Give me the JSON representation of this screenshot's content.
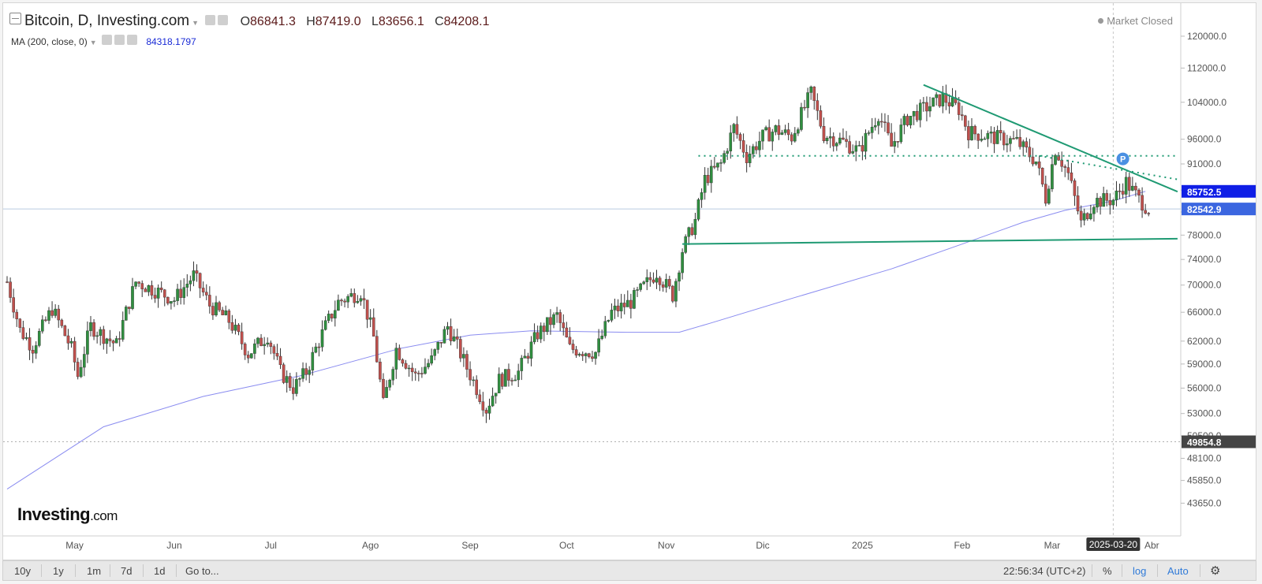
{
  "header": {
    "title": "Bitcoin, D, Investing.com",
    "open_label": "O",
    "open": "86841.3",
    "high_label": "H",
    "high": "87419.0",
    "low_label": "L",
    "low": "83656.1",
    "close_label": "C",
    "close": "84208.1",
    "ma_label": "MA (200, close, 0)",
    "ma_value": "84318.1797",
    "market_status": "Market Closed",
    "logo_main": "Investing",
    "logo_suffix": ".com"
  },
  "toolbar": {
    "ranges": [
      "10y",
      "1y",
      "1m",
      "7d",
      "1d"
    ],
    "goto": "Go to...",
    "clock": "22:56:34 (UTC+2)",
    "percent": "%",
    "log": "log",
    "auto": "Auto",
    "settings_icon": "gear-icon"
  },
  "colors": {
    "up": "#2f8f3f",
    "down": "#c0504d",
    "ma": "#8a8cf0",
    "trendline": "#1f9a73",
    "price_tag_blue": "#0f1ee6",
    "price_tag_last": "#3b66e0",
    "price_tag_gray": "#444444"
  },
  "chart_data": {
    "type": "candlestick",
    "scale": "log",
    "ylim": [
      42000,
      125000
    ],
    "y_ticks": [
      "120000.0",
      "112000.0",
      "104000.0",
      "96000.0",
      "91000.0",
      "86000.0",
      "82000.0",
      "78000.0",
      "74000.0",
      "70000.0",
      "66000.0",
      "62000.0",
      "59000.0",
      "56000.0",
      "53000.0",
      "50500.0",
      "48100.0",
      "45850.0",
      "43650.0"
    ],
    "x_range": [
      "2024-04-10",
      "2025-04-10"
    ],
    "x_labels": [
      {
        "text": "May",
        "date": "2024-05-01"
      },
      {
        "text": "Jun",
        "date": "2024-06-01"
      },
      {
        "text": "Jul",
        "date": "2024-07-01"
      },
      {
        "text": "Ago",
        "date": "2024-08-01"
      },
      {
        "text": "Sep",
        "date": "2024-09-01"
      },
      {
        "text": "Oct",
        "date": "2024-10-01"
      },
      {
        "text": "Nov",
        "date": "2024-11-01"
      },
      {
        "text": "Dic",
        "date": "2024-12-01"
      },
      {
        "text": "2025",
        "date": "2025-01-01"
      },
      {
        "text": "Feb",
        "date": "2025-02-01"
      },
      {
        "text": "Mar",
        "date": "2025-03-01"
      },
      {
        "text": "Abr",
        "date": "2025-04-01"
      }
    ],
    "crosshair_date": "2025-03-20",
    "price_tags": [
      {
        "text": "85752.5",
        "value": 85752.5,
        "style": "blue"
      },
      {
        "text": "82542.9",
        "value": 82542.9,
        "style": "last"
      },
      {
        "text": "49854.8",
        "value": 49854.8,
        "style": "gray"
      }
    ],
    "horizontal_lines": [
      {
        "value": 82542.9,
        "style": "solid-light"
      },
      {
        "value": 49854.8,
        "style": "dotted-gray"
      }
    ],
    "pattern_lines": [
      {
        "name": "descending resistance",
        "style": "solid",
        "from": {
          "date": "2025-01-20",
          "value": 108000
        },
        "to": {
          "date": "2025-04-09",
          "value": 85700
        }
      },
      {
        "name": "horizontal support",
        "style": "solid",
        "from": {
          "date": "2024-11-06",
          "value": 76500
        },
        "to": {
          "date": "2025-04-09",
          "value": 77400
        }
      },
      {
        "name": "neckline",
        "style": "dotted",
        "from": {
          "date": "2024-11-11",
          "value": 92600
        },
        "to": {
          "date": "2025-04-09",
          "value": 92600
        }
      },
      {
        "name": "minor down",
        "style": "dotted",
        "from": {
          "date": "2025-02-25",
          "value": 92600
        },
        "to": {
          "date": "2025-04-09",
          "value": 88000
        }
      }
    ],
    "p_marker": {
      "text": "P",
      "date": "2025-03-23",
      "value": 92000
    },
    "ma_series": {
      "name": "MA (200, close, 0)",
      "points": [
        [
          "2024-04-10",
          45000
        ],
        [
          "2024-05-10",
          51500
        ],
        [
          "2024-06-10",
          55000
        ],
        [
          "2024-07-10",
          57500
        ],
        [
          "2024-08-10",
          61000
        ],
        [
          "2024-09-01",
          62800
        ],
        [
          "2024-09-20",
          63400
        ],
        [
          "2024-10-20",
          63200
        ],
        [
          "2024-11-05",
          63200
        ],
        [
          "2024-11-15",
          64500
        ],
        [
          "2024-12-10",
          68000
        ],
        [
          "2025-01-10",
          72500
        ],
        [
          "2025-02-01",
          76500
        ],
        [
          "2025-02-20",
          80200
        ],
        [
          "2025-03-05",
          82300
        ],
        [
          "2025-03-20",
          84000
        ],
        [
          "2025-03-30",
          85752.5
        ]
      ]
    },
    "price_series": [
      [
        "2024-04-10",
        70500
      ],
      [
        "2024-04-14",
        63500
      ],
      [
        "2024-04-18",
        61200
      ],
      [
        "2024-04-24",
        66500
      ],
      [
        "2024-04-30",
        61000
      ],
      [
        "2024-05-02",
        57500
      ],
      [
        "2024-05-06",
        64000
      ],
      [
        "2024-05-14",
        61500
      ],
      [
        "2024-05-20",
        70500
      ],
      [
        "2024-05-27",
        69000
      ],
      [
        "2024-06-01",
        67800
      ],
      [
        "2024-06-07",
        71500
      ],
      [
        "2024-06-12",
        67000
      ],
      [
        "2024-06-18",
        64800
      ],
      [
        "2024-06-24",
        60300
      ],
      [
        "2024-06-30",
        62800
      ],
      [
        "2024-07-04",
        58000
      ],
      [
        "2024-07-08",
        56000
      ],
      [
        "2024-07-12",
        58000
      ],
      [
        "2024-07-18",
        64000
      ],
      [
        "2024-07-22",
        67500
      ],
      [
        "2024-07-29",
        69000
      ],
      [
        "2024-08-02",
        62500
      ],
      [
        "2024-08-05",
        54000
      ],
      [
        "2024-08-09",
        61000
      ],
      [
        "2024-08-15",
        57500
      ],
      [
        "2024-08-20",
        59500
      ],
      [
        "2024-08-25",
        64000
      ],
      [
        "2024-08-31",
        58500
      ],
      [
        "2024-09-06",
        53500
      ],
      [
        "2024-09-10",
        57000
      ],
      [
        "2024-09-16",
        58000
      ],
      [
        "2024-09-22",
        63000
      ],
      [
        "2024-09-28",
        65500
      ],
      [
        "2024-10-02",
        61000
      ],
      [
        "2024-10-10",
        60500
      ],
      [
        "2024-10-15",
        66000
      ],
      [
        "2024-10-21",
        67500
      ],
      [
        "2024-10-29",
        72000
      ],
      [
        "2024-11-03",
        68500
      ],
      [
        "2024-11-06",
        75500
      ],
      [
        "2024-11-10",
        80500
      ],
      [
        "2024-11-13",
        88000
      ],
      [
        "2024-11-18",
        91000
      ],
      [
        "2024-11-22",
        98500
      ],
      [
        "2024-11-26",
        92500
      ],
      [
        "2024-12-01",
        96500
      ],
      [
        "2024-12-05",
        98000
      ],
      [
        "2024-12-10",
        96500
      ],
      [
        "2024-12-16",
        106000
      ],
      [
        "2024-12-20",
        97000
      ],
      [
        "2024-12-26",
        95500
      ],
      [
        "2024-12-31",
        93500
      ],
      [
        "2025-01-06",
        101500
      ],
      [
        "2025-01-10",
        94500
      ],
      [
        "2025-01-15",
        100500
      ],
      [
        "2025-01-20",
        102500
      ],
      [
        "2025-01-26",
        105000
      ],
      [
        "2025-01-31",
        102500
      ],
      [
        "2025-02-03",
        97500
      ],
      [
        "2025-02-10",
        96500
      ],
      [
        "2025-02-18",
        95500
      ],
      [
        "2025-02-24",
        91500
      ],
      [
        "2025-02-27",
        84500
      ],
      [
        "2025-03-02",
        94000
      ],
      [
        "2025-03-06",
        89000
      ],
      [
        "2025-03-10",
        80000
      ],
      [
        "2025-03-14",
        84000
      ],
      [
        "2025-03-20",
        84200
      ],
      [
        "2025-03-24",
        87500
      ],
      [
        "2025-03-28",
        84300
      ],
      [
        "2025-03-31",
        82542.9
      ]
    ]
  }
}
